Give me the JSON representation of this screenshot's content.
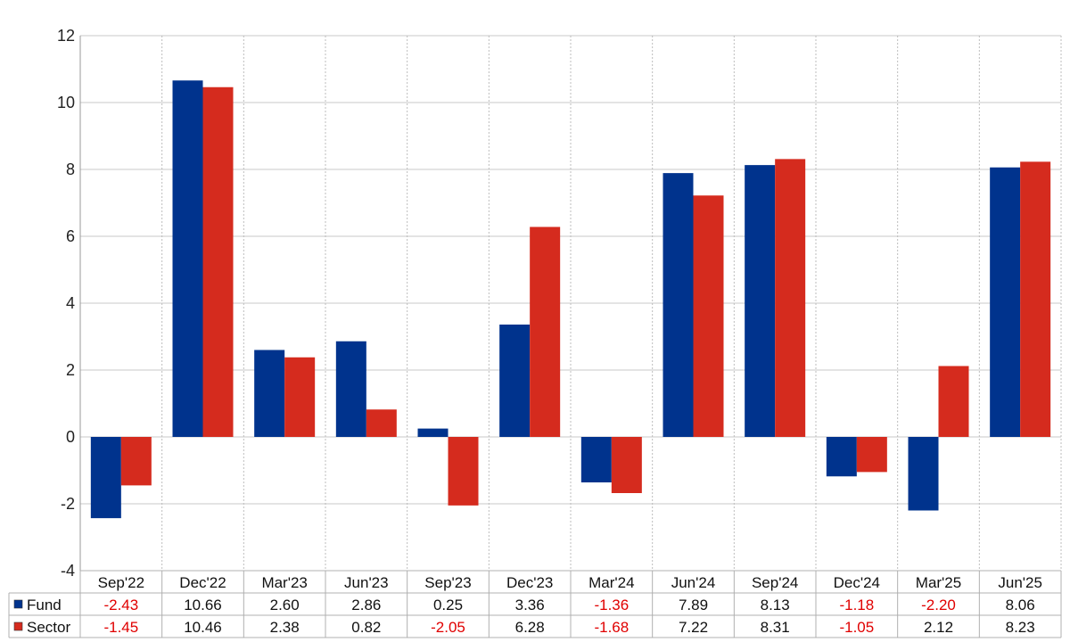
{
  "chart_data": {
    "type": "bar",
    "categories": [
      "Sep'22",
      "Dec'22",
      "Mar'23",
      "Jun'23",
      "Sep'23",
      "Dec'23",
      "Mar'24",
      "Jun'24",
      "Sep'24",
      "Dec'24",
      "Mar'25",
      "Jun'25"
    ],
    "series": [
      {
        "name": "Fund",
        "color": "#00338d",
        "values": [
          -2.43,
          10.66,
          2.6,
          2.86,
          0.25,
          3.36,
          -1.36,
          7.89,
          8.13,
          -1.18,
          -2.2,
          8.06
        ]
      },
      {
        "name": "Sector",
        "color": "#d52b1e",
        "values": [
          -1.45,
          10.46,
          2.38,
          0.82,
          -2.05,
          6.28,
          -1.68,
          7.22,
          8.31,
          -1.05,
          2.12,
          8.23
        ]
      }
    ],
    "ylim": [
      -4,
      12
    ],
    "yticks": [
      12,
      10,
      8,
      6,
      4,
      2,
      0,
      -2,
      -4
    ],
    "grid": true,
    "table_below": true,
    "negative_value_color": "#e00000",
    "positive_value_color": "#111111"
  }
}
